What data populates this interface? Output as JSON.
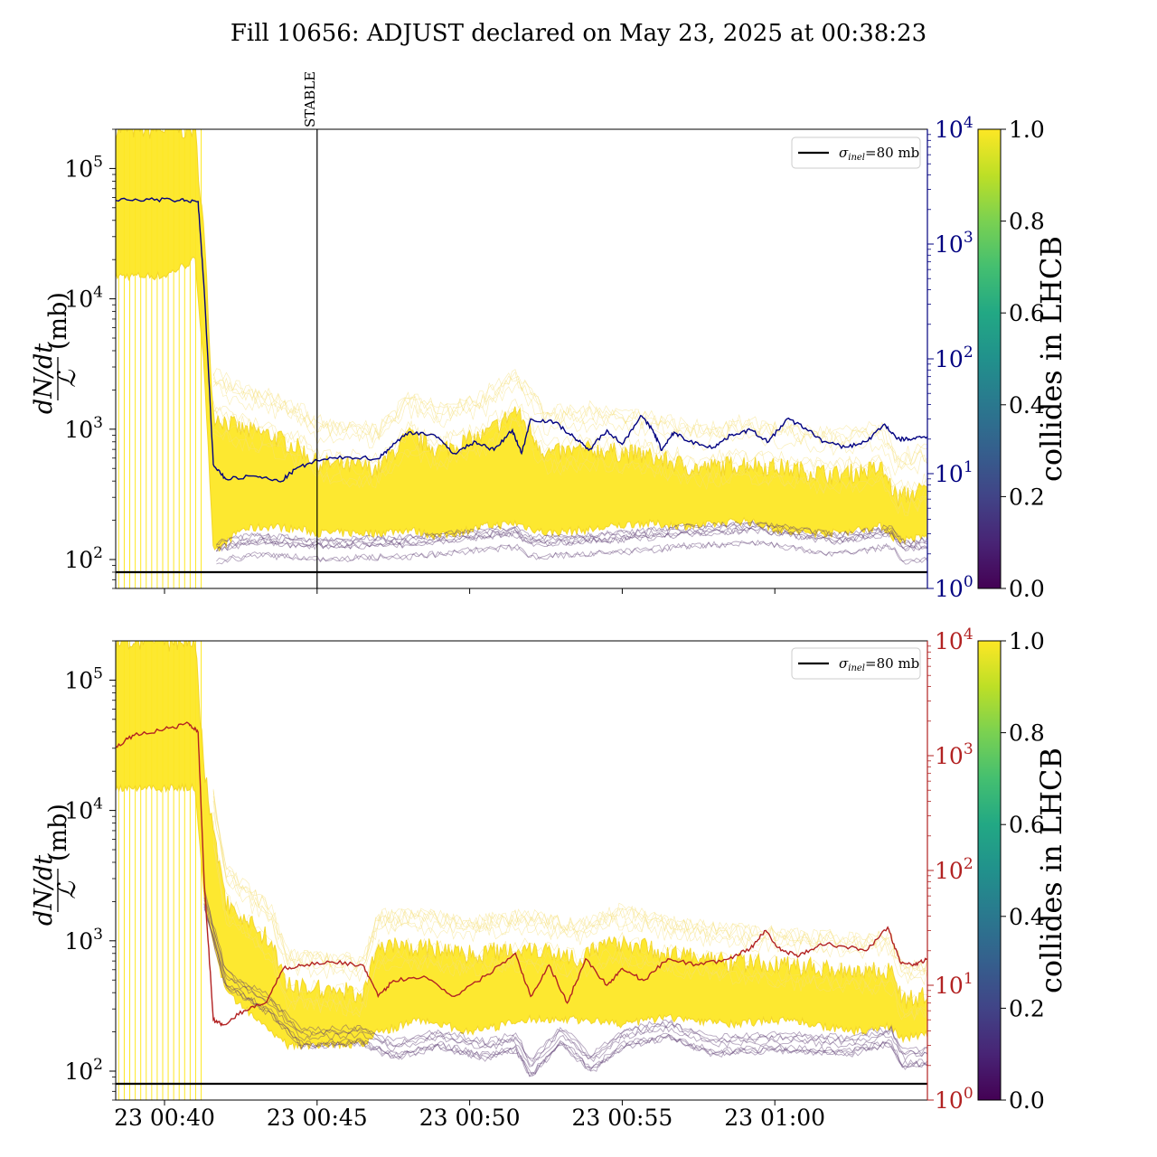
{
  "figure": {
    "title": "Fill 10656: ADJUST declared on May 23, 2025 at 00:38:23"
  },
  "colors": {
    "yellow": "#fde725",
    "purple": "#5b3a70",
    "top_right_axis": "#000080",
    "bottom_right_axis": "#b22222",
    "reference_line": "#000000"
  },
  "chart_data": [
    {
      "type": "line",
      "panel": "top",
      "title": "",
      "ylabel_num": "dN/dt",
      "ylabel_den": "ℒ",
      "ylabel_unit": "(mb)",
      "yscale": "log",
      "ylim": [
        60,
        200000
      ],
      "y_ticks": [
        {
          "v": 100,
          "e": "2"
        },
        {
          "v": 1000,
          "e": "3"
        },
        {
          "v": 10000,
          "e": "4"
        },
        {
          "v": 100000,
          "e": "5"
        }
      ],
      "y2scale": "log",
      "y2lim": [
        1,
        10000
      ],
      "y2_ticks": [
        {
          "v": 1,
          "e": "0"
        },
        {
          "v": 10,
          "e": "1"
        },
        {
          "v": 100,
          "e": "2"
        },
        {
          "v": 1000,
          "e": "3"
        },
        {
          "v": 10000,
          "e": "4"
        }
      ],
      "y2_color": "#000080",
      "xlim_minutes": [
        38.4,
        65.0
      ],
      "x_tick_minutes": [
        40,
        45,
        50,
        55,
        60
      ],
      "x_tick_labels": [],
      "vline": {
        "x_minute": 45,
        "label": "STABLE"
      },
      "hline": {
        "y": 80,
        "name": "σinel=80 mb"
      },
      "legend": {
        "placement": "top-right",
        "entries": [
          {
            "base": "σ",
            "sub": "inel",
            "rest": "=80 mb"
          }
        ]
      },
      "colorbar": {
        "label": "collides in LHCB",
        "ticks": [
          "0.0",
          "0.2",
          "0.4",
          "0.6",
          "0.8",
          "1.0"
        ]
      },
      "band_profile": [
        {
          "x": 38.4,
          "low": 15000,
          "high": 200000
        },
        {
          "x": 40.0,
          "low": 15000,
          "high": 200000
        },
        {
          "x": 41.0,
          "low": 20000,
          "high": 200000
        },
        {
          "x": 41.3,
          "low": 3000,
          "high": 30000
        },
        {
          "x": 41.6,
          "low": 110,
          "high": 1300
        },
        {
          "x": 42.5,
          "low": 170,
          "high": 1000
        },
        {
          "x": 43.5,
          "low": 180,
          "high": 900
        },
        {
          "x": 44.5,
          "low": 170,
          "high": 700
        },
        {
          "x": 45.0,
          "low": 160,
          "high": 550
        },
        {
          "x": 47.0,
          "low": 160,
          "high": 500
        },
        {
          "x": 48.0,
          "low": 170,
          "high": 900
        },
        {
          "x": 49.0,
          "low": 150,
          "high": 700
        },
        {
          "x": 50.5,
          "low": 180,
          "high": 900
        },
        {
          "x": 51.5,
          "low": 190,
          "high": 1400
        },
        {
          "x": 52.5,
          "low": 160,
          "high": 650
        },
        {
          "x": 54.0,
          "low": 170,
          "high": 700
        },
        {
          "x": 55.5,
          "low": 190,
          "high": 650
        },
        {
          "x": 57.5,
          "low": 180,
          "high": 500
        },
        {
          "x": 59.0,
          "low": 200,
          "high": 550
        },
        {
          "x": 60.5,
          "low": 160,
          "high": 500
        },
        {
          "x": 62.0,
          "low": 160,
          "high": 450
        },
        {
          "x": 63.5,
          "low": 180,
          "high": 500
        },
        {
          "x": 64.0,
          "low": 140,
          "high": 300
        },
        {
          "x": 65.0,
          "low": 150,
          "high": 350
        }
      ],
      "purple_profile": [
        {
          "x": 41.7,
          "y": 115
        },
        {
          "x": 43.0,
          "y": 130
        },
        {
          "x": 45.0,
          "y": 120
        },
        {
          "x": 48.0,
          "y": 125
        },
        {
          "x": 51.5,
          "y": 150
        },
        {
          "x": 52.0,
          "y": 125
        },
        {
          "x": 55.0,
          "y": 135
        },
        {
          "x": 57.0,
          "y": 150
        },
        {
          "x": 59.5,
          "y": 160
        },
        {
          "x": 62.0,
          "y": 130
        },
        {
          "x": 63.8,
          "y": 150
        },
        {
          "x": 64.2,
          "y": 115
        },
        {
          "x": 65.0,
          "y": 120
        }
      ],
      "series": [
        {
          "name": "",
          "axis": "right",
          "x": [
            38.4,
            39.5,
            40.5,
            41.1,
            41.3,
            41.6,
            42.0,
            43.0,
            43.8,
            44.3,
            45.0,
            46.0,
            47.0,
            47.4,
            48.0,
            48.8,
            49.5,
            50.2,
            50.8,
            51.4,
            51.7,
            52.0,
            52.8,
            53.4,
            53.9,
            54.5,
            55.0,
            55.6,
            56.0,
            56.3,
            56.7,
            57.2,
            58.0,
            58.6,
            59.2,
            59.8,
            60.4,
            61.0,
            61.6,
            62.3,
            63.0,
            63.6,
            64.0,
            64.4,
            65.0
          ],
          "y": [
            2400,
            2450,
            2400,
            2350,
            400,
            12,
            9,
            9.5,
            8.5,
            11,
            13,
            14,
            13.5,
            17,
            23,
            22,
            15,
            19,
            16,
            24,
            15,
            30,
            28,
            21,
            16,
            24,
            18,
            32,
            24,
            16,
            23,
            19,
            17,
            22,
            24,
            19,
            30,
            25,
            19,
            17,
            19,
            27,
            20,
            20,
            21
          ]
        }
      ]
    },
    {
      "type": "line",
      "panel": "bottom",
      "title": "",
      "ylabel_num": "dN/dt",
      "ylabel_den": "ℒ",
      "ylabel_unit": "(mb)",
      "yscale": "log",
      "ylim": [
        60,
        200000
      ],
      "y_ticks": [
        {
          "v": 100,
          "e": "2"
        },
        {
          "v": 1000,
          "e": "3"
        },
        {
          "v": 10000,
          "e": "4"
        },
        {
          "v": 100000,
          "e": "5"
        }
      ],
      "y2scale": "log",
      "y2lim": [
        1,
        10000
      ],
      "y2_ticks": [
        {
          "v": 1,
          "e": "0"
        },
        {
          "v": 10,
          "e": "1"
        },
        {
          "v": 100,
          "e": "2"
        },
        {
          "v": 1000,
          "e": "3"
        },
        {
          "v": 10000,
          "e": "4"
        }
      ],
      "y2_color": "#b22222",
      "xlim_minutes": [
        38.4,
        65.0
      ],
      "x_tick_minutes": [
        40,
        45,
        50,
        55,
        60
      ],
      "x_tick_labels": [
        "23 00:40",
        "23 00:45",
        "23 00:50",
        "23 00:55",
        "23 01:00"
      ],
      "hline": {
        "y": 80,
        "name": "σinel=80 mb"
      },
      "legend": {
        "placement": "top-right",
        "entries": [
          {
            "base": "σ",
            "sub": "inel",
            "rest": "=80 mb"
          }
        ]
      },
      "colorbar": {
        "label": "collides in LHCB",
        "ticks": [
          "0.0",
          "0.2",
          "0.4",
          "0.6",
          "0.8",
          "1.0"
        ]
      },
      "band_profile": [
        {
          "x": 38.4,
          "low": 15000,
          "high": 200000
        },
        {
          "x": 40.5,
          "low": 15000,
          "high": 200000
        },
        {
          "x": 41.0,
          "low": 15000,
          "high": 200000
        },
        {
          "x": 41.3,
          "low": 2000,
          "high": 20000
        },
        {
          "x": 42.0,
          "low": 400,
          "high": 2000
        },
        {
          "x": 43.5,
          "low": 200,
          "high": 1000
        },
        {
          "x": 44.0,
          "low": 160,
          "high": 450
        },
        {
          "x": 46.5,
          "low": 160,
          "high": 400
        },
        {
          "x": 47.0,
          "low": 200,
          "high": 900
        },
        {
          "x": 48.5,
          "low": 250,
          "high": 900
        },
        {
          "x": 50.0,
          "low": 200,
          "high": 800
        },
        {
          "x": 52.0,
          "low": 250,
          "high": 900
        },
        {
          "x": 53.5,
          "low": 250,
          "high": 750
        },
        {
          "x": 55.0,
          "low": 230,
          "high": 1000
        },
        {
          "x": 56.5,
          "low": 260,
          "high": 800
        },
        {
          "x": 58.5,
          "low": 230,
          "high": 700
        },
        {
          "x": 60.5,
          "low": 250,
          "high": 650
        },
        {
          "x": 62.5,
          "low": 200,
          "high": 600
        },
        {
          "x": 63.8,
          "low": 220,
          "high": 600
        },
        {
          "x": 64.2,
          "low": 180,
          "high": 350
        },
        {
          "x": 65.0,
          "low": 190,
          "high": 380
        }
      ],
      "purple_profile": [
        {
          "x": 41.3,
          "y": 2000
        },
        {
          "x": 42.0,
          "y": 500
        },
        {
          "x": 43.5,
          "y": 300
        },
        {
          "x": 44.5,
          "y": 170
        },
        {
          "x": 46.5,
          "y": 180
        },
        {
          "x": 47.5,
          "y": 140
        },
        {
          "x": 49.0,
          "y": 170
        },
        {
          "x": 50.5,
          "y": 140
        },
        {
          "x": 51.5,
          "y": 160
        },
        {
          "x": 52.0,
          "y": 100
        },
        {
          "x": 53.0,
          "y": 180
        },
        {
          "x": 54.0,
          "y": 110
        },
        {
          "x": 55.0,
          "y": 170
        },
        {
          "x": 56.5,
          "y": 200
        },
        {
          "x": 58.0,
          "y": 150
        },
        {
          "x": 60.0,
          "y": 160
        },
        {
          "x": 62.5,
          "y": 150
        },
        {
          "x": 63.8,
          "y": 180
        },
        {
          "x": 64.2,
          "y": 120
        },
        {
          "x": 65.0,
          "y": 125
        }
      ],
      "series": [
        {
          "name": "",
          "axis": "right",
          "x": [
            38.4,
            39.0,
            40.0,
            40.8,
            41.1,
            41.3,
            41.6,
            41.9,
            42.6,
            43.3,
            43.9,
            44.5,
            45.5,
            46.5,
            47.0,
            47.5,
            48.5,
            49.5,
            50.5,
            51.5,
            52.0,
            52.6,
            53.2,
            53.8,
            54.5,
            55.0,
            55.7,
            56.5,
            57.5,
            58.5,
            59.2,
            59.7,
            60.2,
            60.8,
            61.5,
            62.2,
            63.0,
            63.7,
            64.1,
            64.6,
            65.0
          ],
          "y": [
            1200,
            1500,
            1700,
            1900,
            1600,
            80,
            5,
            4.5,
            6,
            7,
            14,
            15,
            16,
            15,
            8,
            11,
            12,
            8,
            12,
            19,
            8,
            15,
            7,
            17,
            10,
            14,
            11,
            17,
            15,
            17,
            21,
            30,
            20,
            18,
            23,
            22,
            20,
            32,
            16,
            15,
            17
          ]
        }
      ]
    }
  ]
}
